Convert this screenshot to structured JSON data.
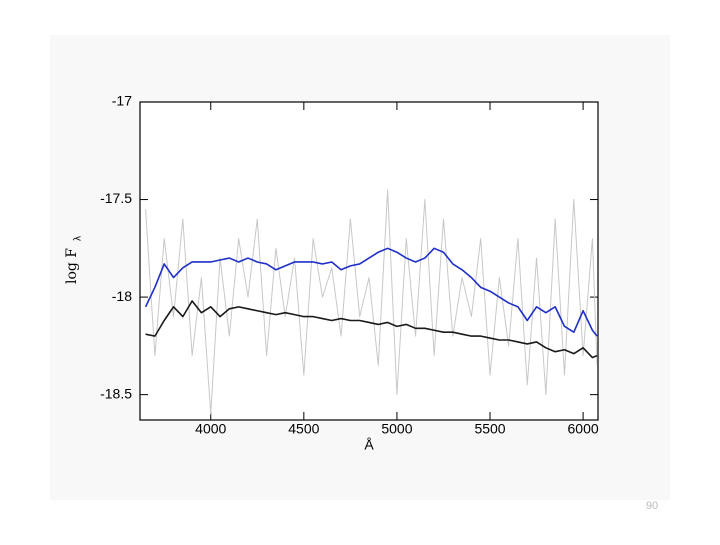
{
  "chart_data": {
    "type": "line",
    "x_label": "Å",
    "y_label": "log F",
    "y_label_sub": "λ",
    "x": [
      3650,
      3700,
      3750,
      3800,
      3850,
      3900,
      3950,
      4000,
      4050,
      4100,
      4150,
      4200,
      4250,
      4300,
      4350,
      4400,
      4450,
      4500,
      4550,
      4600,
      4650,
      4700,
      4750,
      4800,
      4850,
      4900,
      4950,
      5000,
      5050,
      5100,
      5150,
      5200,
      5250,
      5300,
      5350,
      5400,
      5450,
      5500,
      5550,
      5600,
      5650,
      5700,
      5750,
      5800,
      5850,
      5900,
      5950,
      6000,
      6050,
      6075
    ],
    "series": [
      {
        "color": "#c8c8c8",
        "values": [
          -17.55,
          -18.3,
          -17.7,
          -18.1,
          -17.6,
          -18.3,
          -17.9,
          -18.6,
          -17.8,
          -18.2,
          -17.7,
          -18.0,
          -17.6,
          -18.3,
          -17.75,
          -18.1,
          -17.8,
          -18.4,
          -17.7,
          -18.0,
          -17.85,
          -18.2,
          -17.6,
          -18.1,
          -17.9,
          -18.35,
          -17.45,
          -18.5,
          -17.7,
          -18.2,
          -17.5,
          -18.3,
          -17.6,
          -18.2,
          -17.9,
          -18.1,
          -17.7,
          -18.4,
          -17.9,
          -18.25,
          -17.7,
          -18.45,
          -17.8,
          -18.5,
          -17.6,
          -18.4,
          -17.5,
          -18.3,
          -17.7,
          -18.35
        ]
      },
      {
        "color": "#1a1a1a",
        "values": [
          -18.19,
          -18.2,
          -18.12,
          -18.05,
          -18.1,
          -18.02,
          -18.08,
          -18.05,
          -18.1,
          -18.06,
          -18.05,
          -18.06,
          -18.07,
          -18.08,
          -18.09,
          -18.08,
          -18.09,
          -18.1,
          -18.1,
          -18.11,
          -18.12,
          -18.11,
          -18.12,
          -18.12,
          -18.13,
          -18.14,
          -18.13,
          -18.15,
          -18.14,
          -18.16,
          -18.16,
          -18.17,
          -18.18,
          -18.18,
          -18.19,
          -18.2,
          -18.2,
          -18.21,
          -18.22,
          -18.22,
          -18.23,
          -18.24,
          -18.23,
          -18.26,
          -18.28,
          -18.27,
          -18.29,
          -18.26,
          -18.31,
          -18.3
        ]
      },
      {
        "color": "#1f2fc8",
        "values": [
          -18.05,
          -17.95,
          -17.83,
          -17.9,
          -17.85,
          -17.82,
          -17.82,
          -17.82,
          -17.81,
          -17.8,
          -17.82,
          -17.8,
          -17.82,
          -17.83,
          -17.86,
          -17.84,
          -17.82,
          -17.82,
          -17.82,
          -17.83,
          -17.82,
          -17.86,
          -17.84,
          -17.83,
          -17.8,
          -17.77,
          -17.75,
          -17.77,
          -17.8,
          -17.82,
          -17.8,
          -17.75,
          -17.77,
          -17.83,
          -17.86,
          -17.9,
          -17.95,
          -17.97,
          -18.0,
          -18.03,
          -18.05,
          -18.12,
          -18.05,
          -18.08,
          -18.05,
          -18.15,
          -18.18,
          -18.07,
          -18.17,
          -18.2
        ]
      }
    ],
    "xlim": [
      3620,
      6080
    ],
    "xticks": [
      4000,
      4500,
      5000,
      5500,
      6000
    ],
    "ylim": [
      -18.63,
      -17
    ],
    "yticks": [
      -17,
      -17.5,
      -18,
      -18.5
    ]
  },
  "page_number": "90"
}
